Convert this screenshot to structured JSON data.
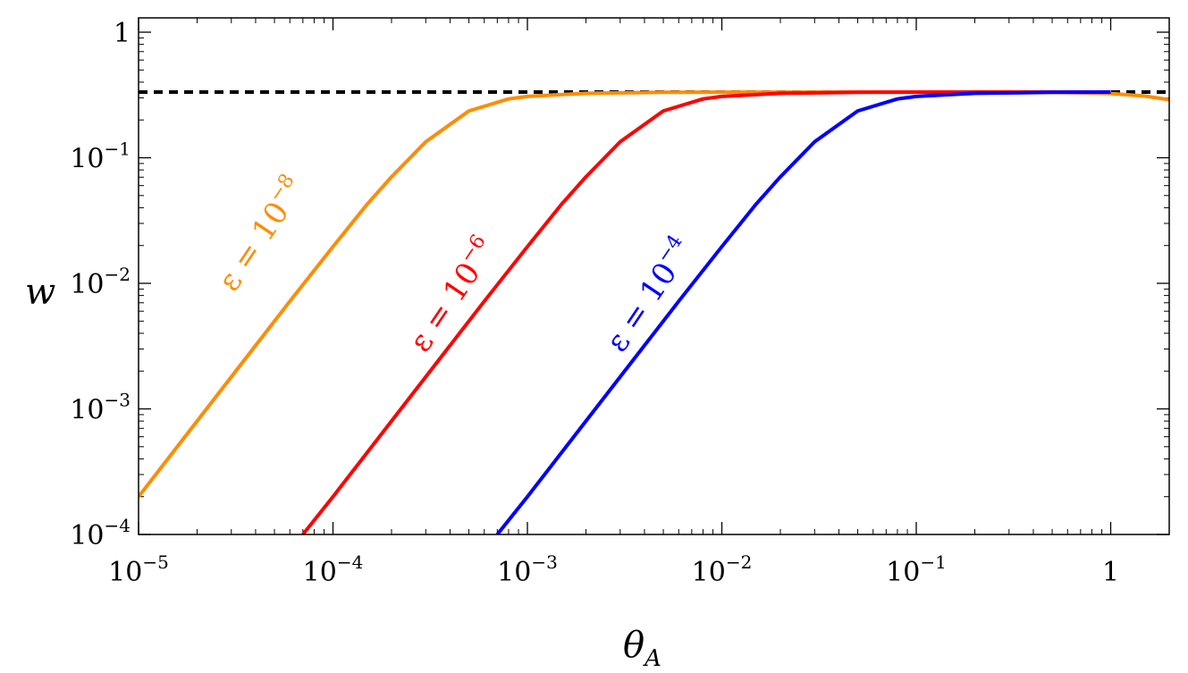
{
  "chart_data": {
    "type": "line",
    "title": "",
    "xlabel": {
      "base": "θ",
      "sub": "A"
    },
    "ylabel": "w",
    "x_scale": "log",
    "y_scale": "log",
    "xlim": [
      1e-05,
      2
    ],
    "ylim": [
      0.0001,
      1.3
    ],
    "x_ticks": [
      {
        "value": 1e-05,
        "base": "10",
        "exp": "−5"
      },
      {
        "value": 0.0001,
        "base": "10",
        "exp": "−4"
      },
      {
        "value": 0.001,
        "base": "10",
        "exp": "−3"
      },
      {
        "value": 0.01,
        "base": "10",
        "exp": "−2"
      },
      {
        "value": 0.1,
        "base": "10",
        "exp": "−1"
      },
      {
        "value": 1,
        "base": "1",
        "exp": ""
      }
    ],
    "y_ticks": [
      {
        "value": 0.0001,
        "base": "10",
        "exp": "−4"
      },
      {
        "value": 0.001,
        "base": "10",
        "exp": "−3"
      },
      {
        "value": 0.01,
        "base": "10",
        "exp": "−2"
      },
      {
        "value": 0.1,
        "base": "10",
        "exp": "−1"
      },
      {
        "value": 1,
        "base": "1",
        "exp": ""
      }
    ],
    "reference_line": {
      "y": 0.3333,
      "style": "dashed",
      "color": "#000000"
    },
    "series": [
      {
        "label_base": "ε = 10",
        "label_exp": "−8",
        "color": "#ff8c00",
        "x": [
          1e-05,
          2e-05,
          4e-05,
          6e-05,
          0.0001,
          0.00015,
          0.0002,
          0.0003,
          0.0005,
          0.0008,
          0.001,
          0.002,
          0.005,
          0.01,
          0.05,
          0.1,
          0.3,
          0.5,
          1,
          1.5,
          2
        ],
        "y": [
          0.0002,
          0.0008,
          0.0032,
          0.0072,
          0.0196,
          0.0427,
          0.0705,
          0.134,
          0.236,
          0.294,
          0.308,
          0.326,
          0.332,
          0.333,
          0.3333,
          0.3333,
          0.333,
          0.332,
          0.325,
          0.31,
          0.29
        ]
      },
      {
        "label_base": "ε = 10",
        "label_exp": "−6",
        "color": "#ff0000",
        "x": [
          7e-05,
          0.0001,
          0.0002,
          0.0004,
          0.0006,
          0.001,
          0.0015,
          0.002,
          0.003,
          0.005,
          0.008,
          0.01,
          0.02,
          0.05,
          0.1,
          0.5,
          1
        ],
        "y": [
          0.0001,
          0.0002,
          0.0008,
          0.0032,
          0.0072,
          0.0196,
          0.0427,
          0.0705,
          0.134,
          0.236,
          0.294,
          0.308,
          0.326,
          0.332,
          0.333,
          0.3333,
          0.3333
        ]
      },
      {
        "label_base": "ε = 10",
        "label_exp": "−4",
        "color": "#0000ff",
        "x": [
          0.0007,
          0.001,
          0.002,
          0.004,
          0.006,
          0.01,
          0.015,
          0.02,
          0.03,
          0.05,
          0.08,
          0.1,
          0.2,
          0.5,
          1
        ],
        "y": [
          0.0001,
          0.0002,
          0.0008,
          0.0032,
          0.0072,
          0.0196,
          0.0427,
          0.0705,
          0.134,
          0.236,
          0.294,
          0.308,
          0.326,
          0.332,
          0.3333
        ]
      }
    ]
  }
}
